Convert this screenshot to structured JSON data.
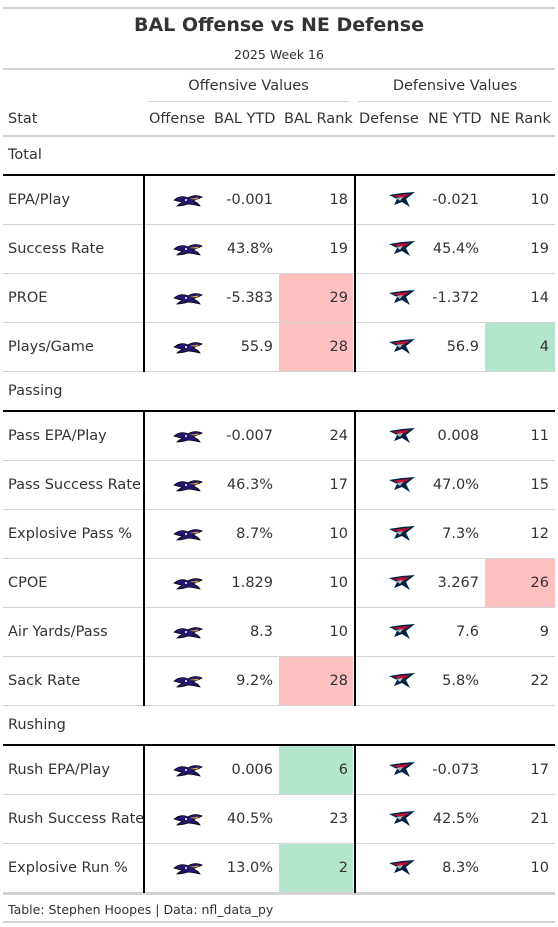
{
  "title": "BAL Offense vs NE Defense",
  "subtitle": "2025 Week 16",
  "spanners": {
    "offense": "Offensive Values",
    "defense": "Defensive Values"
  },
  "columns": {
    "stat": "Stat",
    "offense": "Offense",
    "bal_ytd": "BAL YTD",
    "bal_rank": "BAL Rank",
    "defense": "Defense",
    "ne_ytd": "NE YTD",
    "ne_rank": "NE Rank"
  },
  "logos": {
    "offense": "ravens-logo-icon",
    "defense": "patriots-logo-icon"
  },
  "colors": {
    "bad_rank": "#ffc0c0",
    "good_rank": "#b3e6cc",
    "ravens_purple": "#241773",
    "patriots_navy": "#002244",
    "patriots_red": "#c60c30"
  },
  "groups": [
    {
      "name": "Total",
      "rows": [
        {
          "stat": "EPA/Play",
          "bal_ytd": "-0.001",
          "bal_rank": "18",
          "bal_rank_color": "",
          "ne_ytd": "-0.021",
          "ne_rank": "10",
          "ne_rank_color": ""
        },
        {
          "stat": "Success Rate",
          "bal_ytd": "43.8%",
          "bal_rank": "19",
          "bal_rank_color": "",
          "ne_ytd": "45.4%",
          "ne_rank": "19",
          "ne_rank_color": ""
        },
        {
          "stat": "PROE",
          "bal_ytd": "-5.383",
          "bal_rank": "29",
          "bal_rank_color": "red",
          "ne_ytd": "-1.372",
          "ne_rank": "14",
          "ne_rank_color": ""
        },
        {
          "stat": "Plays/Game",
          "bal_ytd": "55.9",
          "bal_rank": "28",
          "bal_rank_color": "red",
          "ne_ytd": "56.9",
          "ne_rank": "4",
          "ne_rank_color": "green"
        }
      ]
    },
    {
      "name": "Passing",
      "rows": [
        {
          "stat": "Pass EPA/Play",
          "bal_ytd": "-0.007",
          "bal_rank": "24",
          "bal_rank_color": "",
          "ne_ytd": "0.008",
          "ne_rank": "11",
          "ne_rank_color": ""
        },
        {
          "stat": "Pass Success Rate",
          "bal_ytd": "46.3%",
          "bal_rank": "17",
          "bal_rank_color": "",
          "ne_ytd": "47.0%",
          "ne_rank": "15",
          "ne_rank_color": ""
        },
        {
          "stat": "Explosive Pass %",
          "bal_ytd": "8.7%",
          "bal_rank": "10",
          "bal_rank_color": "",
          "ne_ytd": "7.3%",
          "ne_rank": "12",
          "ne_rank_color": ""
        },
        {
          "stat": "CPOE",
          "bal_ytd": "1.829",
          "bal_rank": "10",
          "bal_rank_color": "",
          "ne_ytd": "3.267",
          "ne_rank": "26",
          "ne_rank_color": "red"
        },
        {
          "stat": "Air Yards/Pass",
          "bal_ytd": "8.3",
          "bal_rank": "10",
          "bal_rank_color": "",
          "ne_ytd": "7.6",
          "ne_rank": "9",
          "ne_rank_color": ""
        },
        {
          "stat": "Sack Rate",
          "bal_ytd": "9.2%",
          "bal_rank": "28",
          "bal_rank_color": "red",
          "ne_ytd": "5.8%",
          "ne_rank": "22",
          "ne_rank_color": ""
        }
      ]
    },
    {
      "name": "Rushing",
      "rows": [
        {
          "stat": "Rush EPA/Play",
          "bal_ytd": "0.006",
          "bal_rank": "6",
          "bal_rank_color": "green",
          "ne_ytd": "-0.073",
          "ne_rank": "17",
          "ne_rank_color": ""
        },
        {
          "stat": "Rush Success Rate",
          "bal_ytd": "40.5%",
          "bal_rank": "23",
          "bal_rank_color": "",
          "ne_ytd": "42.5%",
          "ne_rank": "21",
          "ne_rank_color": ""
        },
        {
          "stat": "Explosive Run %",
          "bal_ytd": "13.0%",
          "bal_rank": "2",
          "bal_rank_color": "green",
          "ne_ytd": "8.3%",
          "ne_rank": "10",
          "ne_rank_color": ""
        }
      ]
    }
  ],
  "source_note": "Table: Stephen Hoopes | Data: nfl_data_py"
}
